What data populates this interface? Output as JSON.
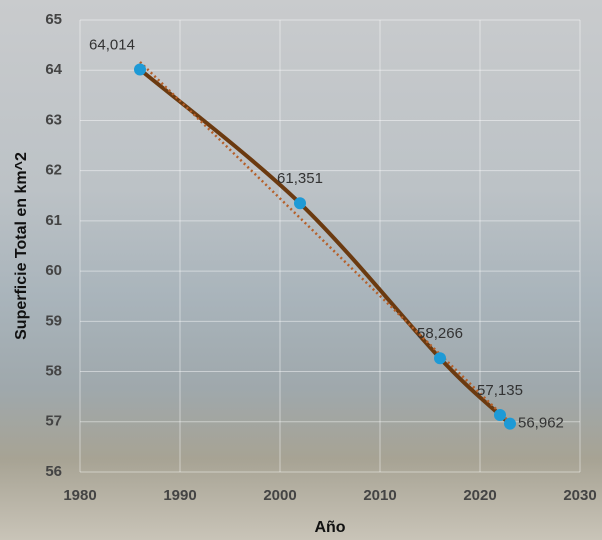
{
  "chart_data": {
    "type": "line",
    "x_label": "Año",
    "y_label": "Superficie Total en km^2",
    "x": [
      1986,
      2002,
      2016,
      2022,
      2023
    ],
    "series": [
      {
        "color": "#6b3a10",
        "marker_color": "#1e9ad6",
        "values": [
          64.014,
          61.351,
          58.266,
          57.135,
          56.962
        ],
        "value_labels": [
          "64,014",
          "61,351",
          "58,266",
          "57,135",
          "56,962"
        ]
      }
    ],
    "trendline": true,
    "trendline_color": "#b5602a",
    "xlim": [
      1980,
      2030
    ],
    "xticks": [
      1980,
      1990,
      2000,
      2010,
      2020,
      2030
    ],
    "ylim": [
      56,
      65
    ],
    "yticks": [
      56,
      57,
      58,
      59,
      60,
      61,
      62,
      63,
      64,
      65
    ],
    "grid": true
  }
}
